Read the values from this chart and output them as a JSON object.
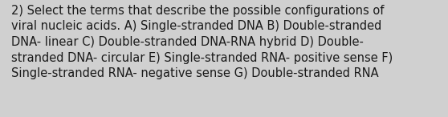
{
  "lines": [
    "2) Select the terms that describe the possible configurations of",
    "viral nucleic acids. A) Single-stranded DNA B) Double-stranded",
    "DNA- linear C) Double-stranded DNA-RNA hybrid D) Double-",
    "stranded DNA- circular E) Single-stranded RNA- positive sense F)",
    "Single-stranded RNA- negative sense G) Double-stranded RNA"
  ],
  "background_color": "#d0d0d0",
  "text_color": "#1a1a1a",
  "font_size": 10.5,
  "fig_width": 5.58,
  "fig_height": 1.46,
  "dpi": 100
}
